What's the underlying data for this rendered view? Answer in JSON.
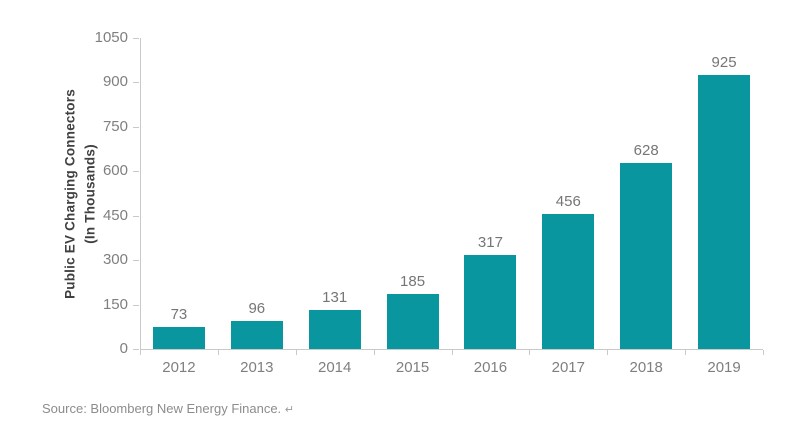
{
  "chart_data": {
    "type": "bar",
    "categories": [
      "2012",
      "2013",
      "2014",
      "2015",
      "2016",
      "2017",
      "2018",
      "2019"
    ],
    "values": [
      73,
      96,
      131,
      185,
      317,
      456,
      628,
      925
    ],
    "title": "",
    "xlabel": "",
    "ylabel_line1": "Public EV Charging Connectors",
    "ylabel_line2": "(In Thousands)",
    "ylim": [
      0,
      1050
    ],
    "yticks": [
      0,
      150,
      300,
      450,
      600,
      750,
      900,
      1050
    ],
    "grid": false,
    "legend": null,
    "value_labels_shown": true,
    "bar_color": "#0a969f",
    "value_label_color": "#767676",
    "tick_label_color": "#7f7f7f",
    "axis_color": "#c9c9c9",
    "ylabel_color": "#404040"
  },
  "footer": {
    "source_text": "Source: Bloomberg New Energy Finance.",
    "source_mark": "↵"
  }
}
